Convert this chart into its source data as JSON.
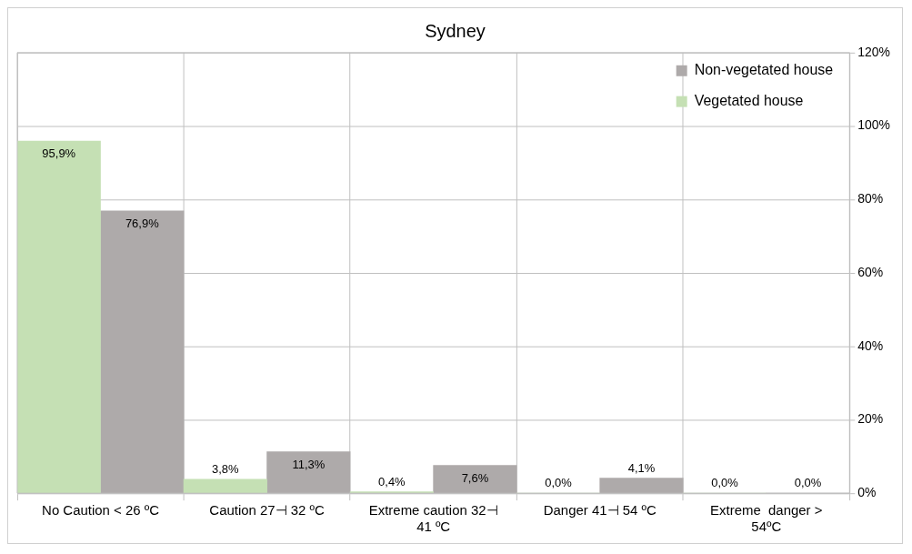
{
  "chart_data": {
    "type": "bar",
    "title": "Sydney",
    "categories": [
      "No Caution < 26 ºC",
      "Caution 27⊣ 32 ºC",
      "Extreme caution 32⊣ 41 ºC",
      "Danger 41⊣ 54 ºC",
      "Extreme  danger > 54ºC"
    ],
    "series": [
      {
        "name": "Vegetated house",
        "color": "#c5e0b4",
        "values": [
          95.9,
          3.8,
          0.4,
          0.0,
          0.0
        ],
        "value_labels": [
          "95,9%",
          "3,8%",
          "0,4%",
          "0,0%",
          "0,0%"
        ]
      },
      {
        "name": "Non-vegetated house",
        "color": "#aeaaaa",
        "values": [
          76.9,
          11.3,
          7.6,
          4.1,
          0.0
        ],
        "value_labels": [
          "76,9%",
          "11,3%",
          "7,6%",
          "4,1%",
          "0,0%"
        ]
      }
    ],
    "ylim": [
      0,
      120
    ],
    "yticks": [
      {
        "value": 0,
        "label": "0%"
      },
      {
        "value": 20,
        "label": "20%"
      },
      {
        "value": 40,
        "label": "40%"
      },
      {
        "value": 60,
        "label": "60%"
      },
      {
        "value": 80,
        "label": "80%"
      },
      {
        "value": 100,
        "label": "100%"
      },
      {
        "value": 120,
        "label": "120%"
      }
    ],
    "grid": true,
    "legend": "top right"
  }
}
